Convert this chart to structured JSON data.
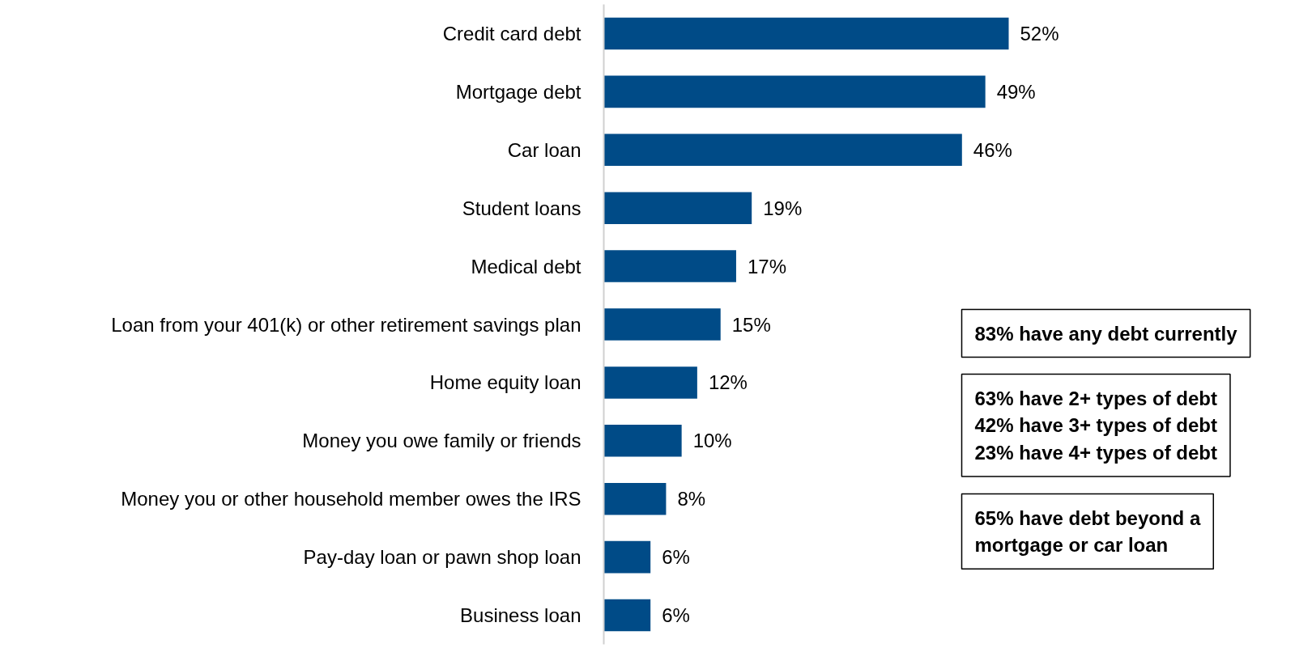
{
  "chart_data": {
    "type": "bar",
    "orientation": "horizontal",
    "categories": [
      "Credit card debt",
      "Mortgage debt",
      "Car loan",
      "Student loans",
      "Medical debt",
      "Loan from your 401(k) or other retirement savings plan",
      "Home equity loan",
      "Money you owe family or friends",
      "Money you or other household member owes the IRS",
      "Pay-day loan or pawn shop loan",
      "Business loan"
    ],
    "values": [
      52,
      49,
      46,
      19,
      17,
      15,
      12,
      10,
      8,
      6,
      6
    ],
    "value_labels": [
      "52%",
      "49%",
      "46%",
      "19%",
      "17%",
      "15%",
      "12%",
      "10%",
      "8%",
      "6%",
      "6%"
    ],
    "color": "#004b87",
    "grid": false,
    "annotations": [
      "83% have any debt currently",
      "63% have 2+ types of debt\n42% have 3+ types of debt\n23% have 4+ types of debt",
      "65% have debt beyond a\nmortgage or car loan"
    ]
  }
}
